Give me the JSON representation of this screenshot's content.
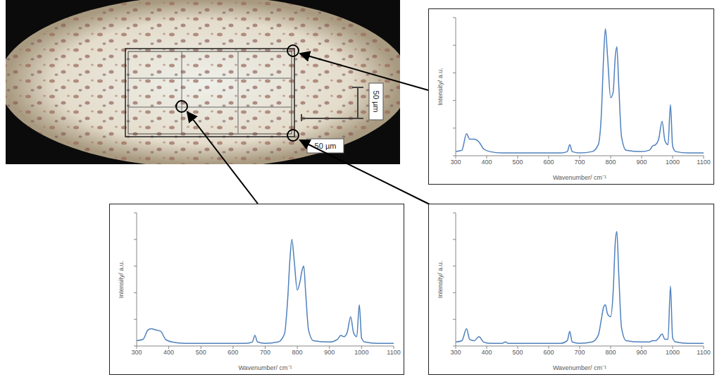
{
  "micrograph": {
    "scale_bar_labels": [
      "50 µm",
      "50 µm"
    ]
  },
  "chart_data": [
    {
      "type": "line",
      "x_label": "Wavenumber/ cm⁻¹",
      "y_label": "Intensity/ a.u.",
      "xlim": [
        300,
        1100
      ],
      "xticks": [
        300,
        400,
        500,
        600,
        700,
        800,
        900,
        1000,
        1100
      ],
      "ylim": [
        0,
        100
      ],
      "yticks": [
        0,
        20,
        40,
        60,
        80,
        100
      ],
      "tick_labels": "x",
      "color": "#4f81bd",
      "x": [
        300,
        320,
        335,
        345,
        360,
        375,
        390,
        410,
        450,
        460,
        470,
        500,
        550,
        600,
        640,
        660,
        668,
        676,
        700,
        740,
        760,
        770,
        777,
        783,
        790,
        800,
        808,
        815,
        820,
        826,
        835,
        850,
        900,
        925,
        935,
        945,
        955,
        966,
        975,
        985,
        993,
        1000,
        1010,
        1050,
        1100
      ],
      "values": [
        3,
        4,
        16,
        12,
        12,
        10,
        5,
        3,
        2,
        2,
        2,
        2,
        2,
        2,
        2,
        3,
        8,
        3,
        2,
        3,
        8,
        30,
        70,
        92,
        72,
        42,
        46,
        72,
        79,
        52,
        14,
        4,
        3,
        4,
        7,
        8,
        12,
        25,
        11,
        8,
        37,
        7,
        3,
        2,
        2
      ]
    },
    {
      "type": "line",
      "x_label": "Wavenumber/ cm⁻¹",
      "y_label": "Intensity/ a.u.",
      "xlim": [
        300,
        1100
      ],
      "xticks": [
        300,
        400,
        500,
        600,
        700,
        800,
        900,
        1000,
        1100
      ],
      "ylim": [
        0,
        100
      ],
      "yticks": [
        0,
        20,
        40,
        60,
        80,
        100
      ],
      "tick_labels": "x",
      "color": "#4f81bd",
      "x": [
        300,
        320,
        335,
        345,
        360,
        375,
        390,
        410,
        450,
        460,
        470,
        500,
        550,
        600,
        640,
        660,
        668,
        676,
        700,
        740,
        760,
        770,
        777,
        783,
        790,
        800,
        808,
        815,
        820,
        826,
        835,
        850,
        900,
        925,
        935,
        945,
        955,
        966,
        975,
        985,
        993,
        1000,
        1010,
        1050,
        1100
      ],
      "values": [
        4,
        5,
        12,
        13,
        12,
        11,
        5,
        3,
        2,
        2,
        2,
        2,
        2,
        2,
        2,
        3,
        8,
        3,
        2,
        3,
        9,
        35,
        65,
        80,
        65,
        42,
        48,
        57,
        60,
        40,
        12,
        4,
        3,
        5,
        8,
        7,
        10,
        22,
        10,
        7,
        31,
        6,
        3,
        2,
        2
      ]
    },
    {
      "type": "line",
      "x_label": "Wavenumber/ cm⁻¹",
      "y_label": "Intensity/ a.u.",
      "xlim": [
        300,
        1100
      ],
      "xticks": [
        300,
        400,
        500,
        600,
        700,
        800,
        900,
        1000,
        1100
      ],
      "ylim": [
        0,
        100
      ],
      "yticks": [
        0,
        20,
        40,
        60,
        80,
        100
      ],
      "tick_labels": "x",
      "color": "#4f81bd",
      "x": [
        300,
        320,
        335,
        345,
        360,
        375,
        390,
        410,
        450,
        460,
        470,
        500,
        550,
        600,
        640,
        660,
        668,
        676,
        700,
        740,
        760,
        770,
        777,
        783,
        790,
        800,
        808,
        815,
        820,
        826,
        835,
        850,
        900,
        925,
        935,
        945,
        955,
        966,
        975,
        985,
        993,
        1000,
        1010,
        1050,
        1100
      ],
      "values": [
        3,
        4,
        13,
        5,
        4,
        7,
        3,
        2,
        2,
        3,
        2,
        2,
        2,
        2,
        2,
        4,
        11,
        3,
        2,
        3,
        8,
        20,
        29,
        31,
        24,
        22,
        40,
        78,
        86,
        55,
        14,
        4,
        3,
        3,
        4,
        4,
        6,
        9,
        5,
        5,
        45,
        6,
        3,
        2,
        2
      ]
    }
  ]
}
